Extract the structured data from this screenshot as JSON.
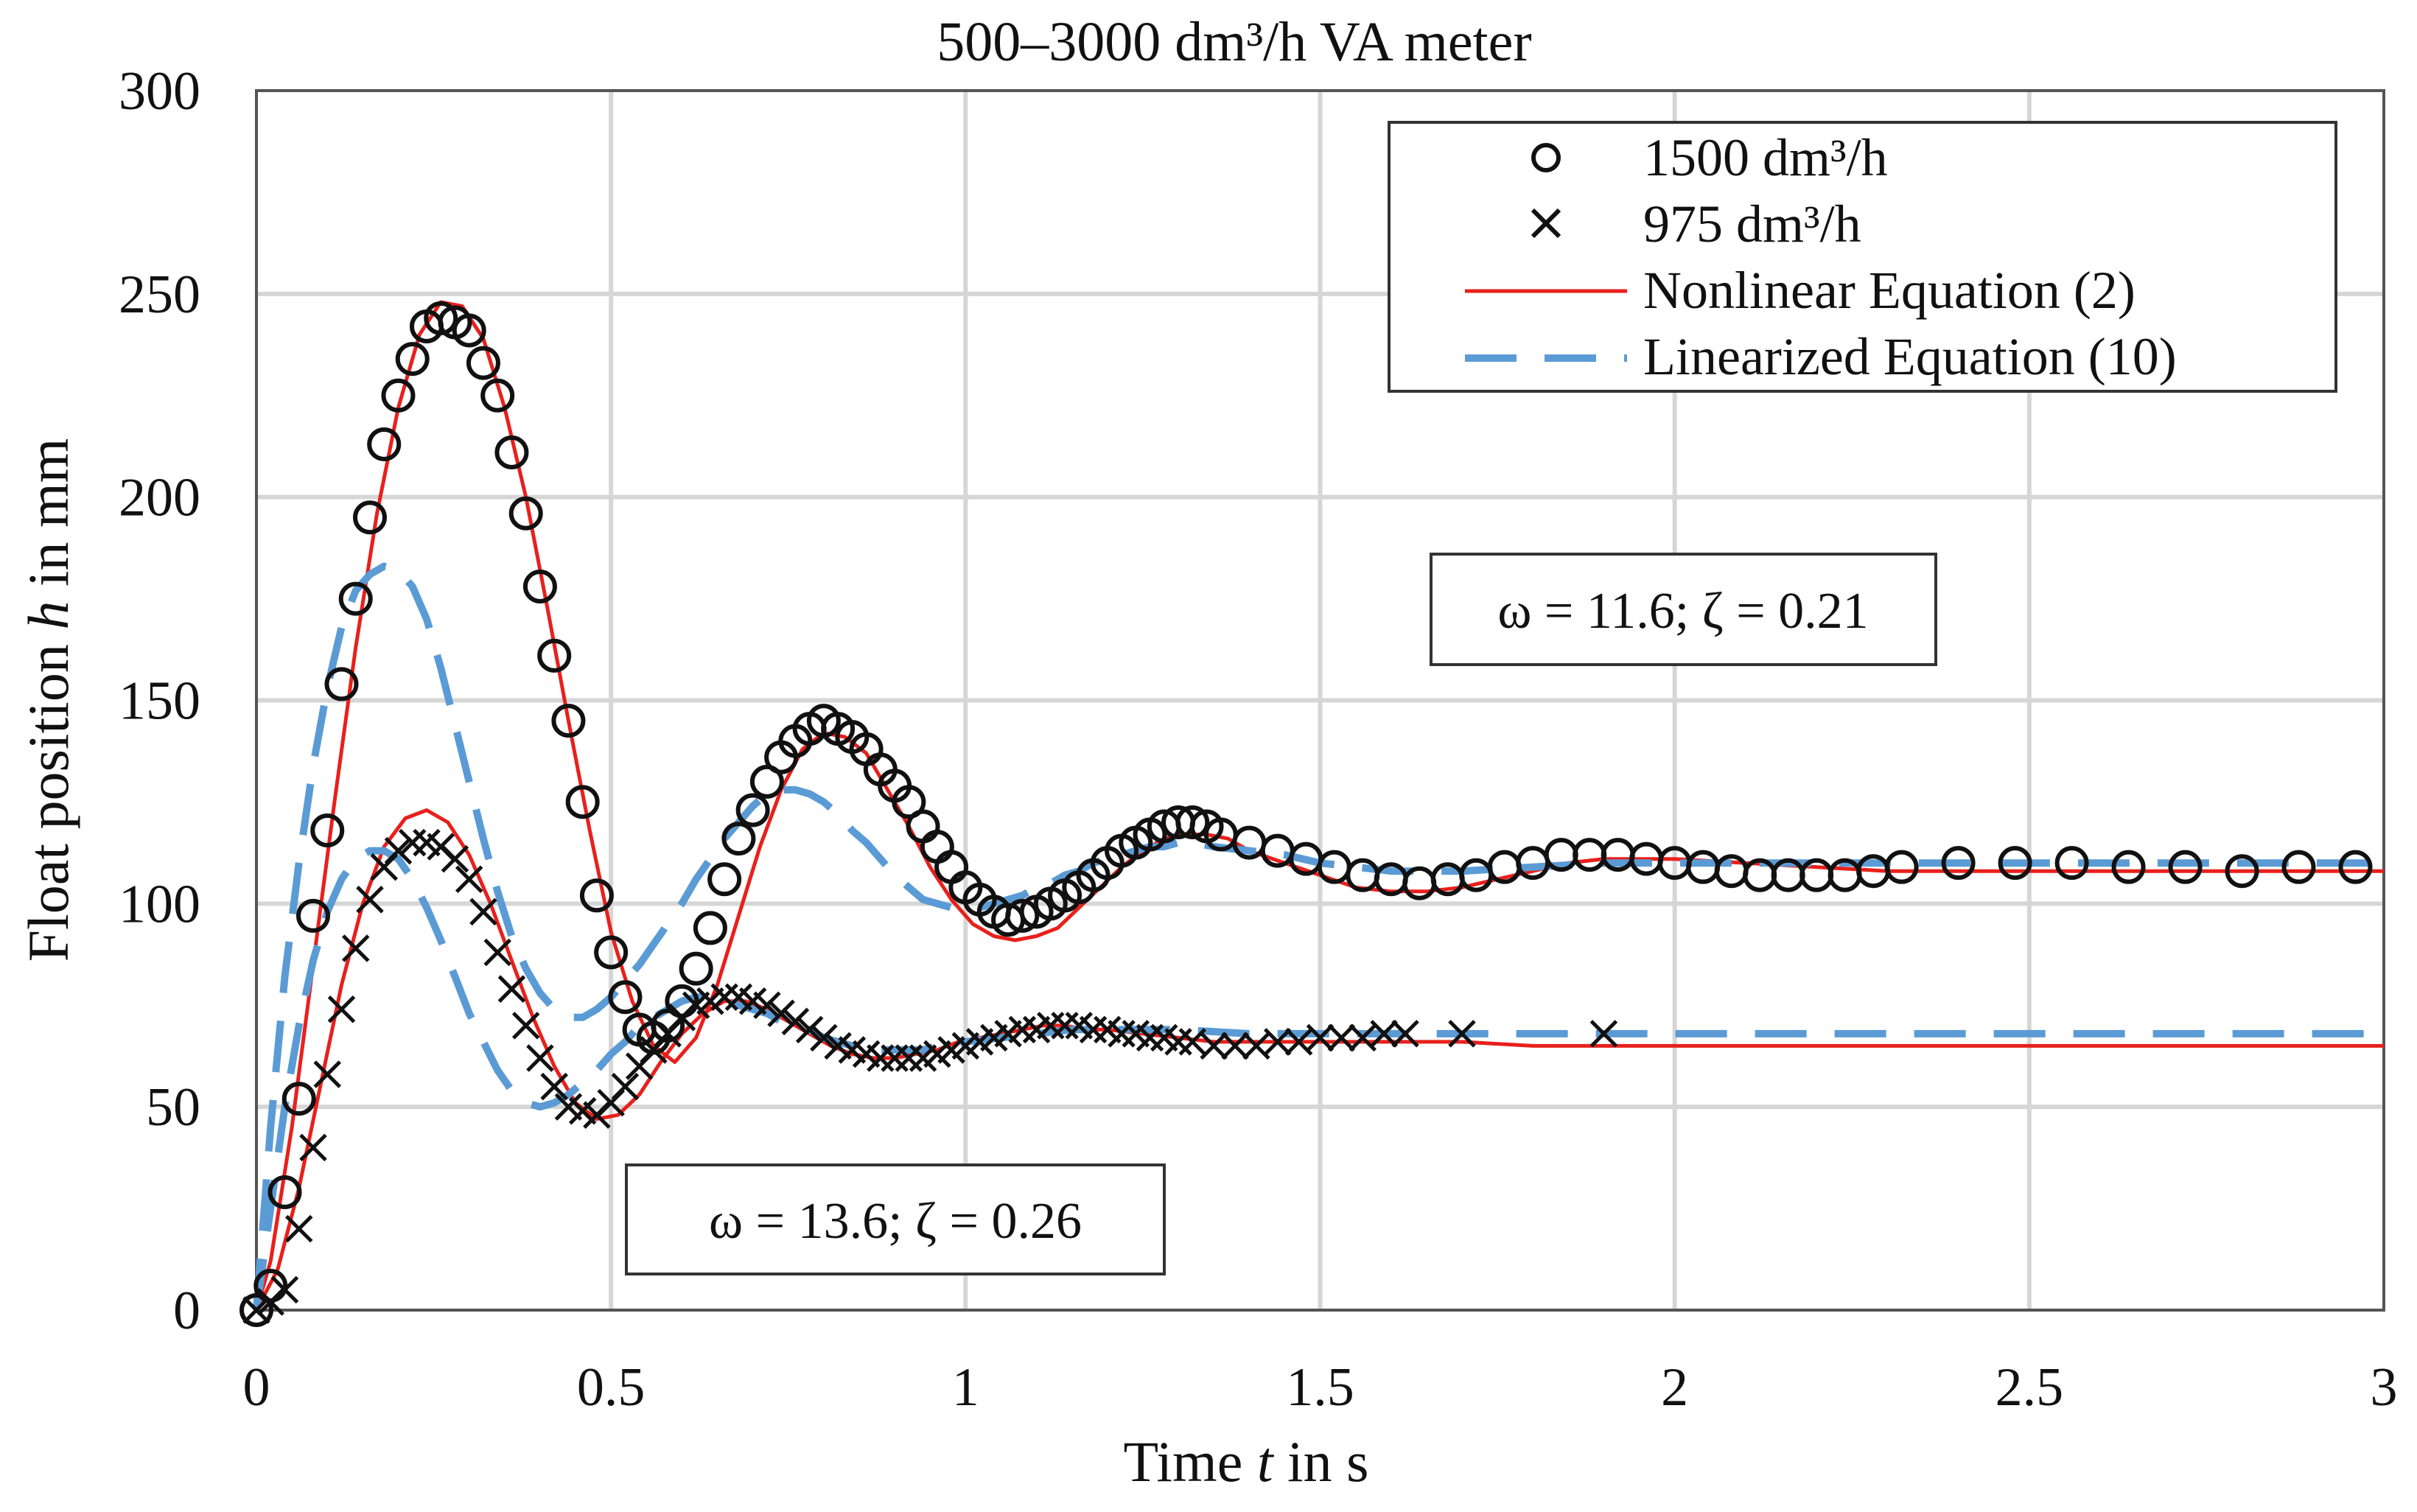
{
  "chart_data": {
    "type": "line",
    "title": "500–3000 dm³/h VA meter",
    "xlabel": "Time t in s",
    "xlabel_parts": [
      "Time ",
      "t",
      " in s"
    ],
    "ylabel": "Float position h in mm",
    "ylabel_parts": [
      "Float position ",
      "h",
      " in mm"
    ],
    "xlim": [
      0,
      3
    ],
    "ylim": [
      0,
      300
    ],
    "x_ticks": [
      0,
      0.5,
      1,
      1.5,
      2,
      2.5,
      3
    ],
    "x_tick_labels": [
      "0",
      "0.5",
      "1",
      "1.5",
      "2",
      "2.5",
      "3"
    ],
    "y_ticks": [
      0,
      50,
      100,
      150,
      200,
      250,
      300
    ],
    "y_tick_labels": [
      "0",
      "50",
      "100",
      "150",
      "200",
      "250",
      "300"
    ],
    "grid": true,
    "legend_position": "top-right",
    "legend": [
      {
        "label": "1500 dm³/h",
        "marker": "circle"
      },
      {
        "label": "975 dm³/h",
        "marker": "cross"
      },
      {
        "label": "Nonlinear Equation (2)",
        "line": "solid",
        "color": "#e8201c"
      },
      {
        "label": "Linearized Equation (10)",
        "line": "dashed",
        "color": "#5b9bd5"
      }
    ],
    "annotations": [
      {
        "text": "ω = 11.6; ζ = 0.21",
        "anchor": "upper-right",
        "x": 2.0,
        "y": 175
      },
      {
        "text": "ω = 13.6; ζ = 0.26",
        "anchor": "lower-left",
        "x": 0.75,
        "y": 20
      }
    ],
    "series": [
      {
        "name": "1500 dm³/h",
        "kind": "markers",
        "marker": "circle",
        "x": [
          0.0,
          0.02,
          0.04,
          0.06,
          0.08,
          0.1,
          0.12,
          0.14,
          0.16,
          0.18,
          0.2,
          0.22,
          0.24,
          0.26,
          0.28,
          0.3,
          0.32,
          0.34,
          0.36,
          0.38,
          0.4,
          0.42,
          0.44,
          0.46,
          0.48,
          0.5,
          0.52,
          0.54,
          0.56,
          0.58,
          0.6,
          0.62,
          0.64,
          0.66,
          0.68,
          0.7,
          0.72,
          0.74,
          0.76,
          0.78,
          0.8,
          0.82,
          0.84,
          0.86,
          0.88,
          0.9,
          0.92,
          0.94,
          0.96,
          0.98,
          1.0,
          1.02,
          1.04,
          1.06,
          1.08,
          1.1,
          1.12,
          1.14,
          1.16,
          1.18,
          1.2,
          1.22,
          1.24,
          1.26,
          1.28,
          1.3,
          1.32,
          1.34,
          1.36,
          1.4,
          1.44,
          1.48,
          1.52,
          1.56,
          1.6,
          1.64,
          1.68,
          1.72,
          1.76,
          1.8,
          1.84,
          1.88,
          1.92,
          1.96,
          2.0,
          2.04,
          2.08,
          2.12,
          2.16,
          2.2,
          2.24,
          2.28,
          2.32,
          2.4,
          2.48,
          2.56,
          2.64,
          2.72,
          2.8,
          2.88,
          2.96
        ],
        "y": [
          0,
          6,
          29,
          52,
          97,
          118,
          154,
          175,
          195,
          213,
          225,
          234,
          242,
          244,
          243,
          241,
          233,
          225,
          211,
          196,
          178,
          161,
          145,
          125,
          102,
          88,
          77,
          69,
          67,
          70,
          76,
          84,
          94,
          106,
          116,
          123,
          130,
          136,
          140,
          143,
          145,
          143,
          141,
          138,
          133,
          129,
          125,
          119,
          114,
          109,
          104,
          101,
          98,
          96,
          97,
          98,
          100,
          102,
          104,
          107,
          110,
          113,
          115,
          117,
          119,
          120,
          120,
          119,
          117,
          115,
          113,
          111,
          109,
          107,
          106,
          105,
          106,
          107,
          109,
          110,
          112,
          112,
          112,
          111,
          110,
          109,
          108,
          107,
          107,
          107,
          107,
          108,
          109,
          110,
          110,
          110,
          109,
          109,
          108,
          109,
          109
        ]
      },
      {
        "name": "975 dm³/h",
        "kind": "markers",
        "marker": "cross",
        "x": [
          0.0,
          0.02,
          0.04,
          0.06,
          0.08,
          0.1,
          0.12,
          0.14,
          0.16,
          0.18,
          0.2,
          0.22,
          0.24,
          0.26,
          0.28,
          0.3,
          0.32,
          0.34,
          0.36,
          0.38,
          0.4,
          0.42,
          0.44,
          0.46,
          0.48,
          0.5,
          0.52,
          0.54,
          0.56,
          0.58,
          0.6,
          0.62,
          0.64,
          0.66,
          0.68,
          0.7,
          0.72,
          0.74,
          0.76,
          0.78,
          0.8,
          0.82,
          0.84,
          0.86,
          0.88,
          0.9,
          0.92,
          0.94,
          0.96,
          0.98,
          1.0,
          1.02,
          1.04,
          1.06,
          1.08,
          1.1,
          1.12,
          1.14,
          1.16,
          1.18,
          1.2,
          1.22,
          1.24,
          1.26,
          1.28,
          1.3,
          1.32,
          1.35,
          1.38,
          1.41,
          1.44,
          1.47,
          1.5,
          1.53,
          1.56,
          1.59,
          1.62,
          1.7,
          1.9
        ],
        "y": [
          0,
          2,
          5,
          20,
          40,
          58,
          74,
          89,
          101,
          109,
          113,
          115,
          115,
          114,
          111,
          106,
          98,
          88,
          79,
          70,
          62,
          55,
          50,
          49,
          48,
          51,
          55,
          60,
          64,
          68,
          72,
          75,
          76,
          77,
          77,
          76,
          75,
          73,
          71,
          69,
          67,
          65,
          64,
          63,
          62,
          62,
          62,
          62,
          63,
          64,
          65,
          66,
          67,
          68,
          69,
          69,
          70,
          70,
          70,
          69,
          69,
          68,
          68,
          67,
          67,
          66,
          66,
          65,
          65,
          65,
          66,
          66,
          67,
          67,
          67,
          68,
          68,
          68,
          68
        ]
      },
      {
        "name": "Nonlinear Equation (2) – 1500 dm³/h",
        "kind": "line",
        "style": "solid",
        "color": "#e8201c",
        "x": [
          0.0,
          0.02,
          0.05,
          0.08,
          0.11,
          0.14,
          0.17,
          0.2,
          0.23,
          0.26,
          0.29,
          0.32,
          0.35,
          0.38,
          0.41,
          0.44,
          0.47,
          0.5,
          0.53,
          0.56,
          0.59,
          0.62,
          0.65,
          0.68,
          0.71,
          0.74,
          0.77,
          0.8,
          0.83,
          0.86,
          0.89,
          0.92,
          0.95,
          0.98,
          1.01,
          1.04,
          1.07,
          1.1,
          1.13,
          1.16,
          1.19,
          1.22,
          1.25,
          1.28,
          1.31,
          1.34,
          1.37,
          1.4,
          1.45,
          1.5,
          1.55,
          1.6,
          1.65,
          1.7,
          1.75,
          1.8,
          1.85,
          1.9,
          1.95,
          2.0,
          2.1,
          2.2,
          2.3,
          2.5,
          2.7,
          3.0
        ],
        "y": [
          0,
          12,
          45,
          85,
          125,
          163,
          196,
          222,
          240,
          248,
          247,
          239,
          222,
          200,
          173,
          145,
          118,
          93,
          76,
          65,
          61,
          67,
          80,
          97,
          114,
          128,
          138,
          142,
          141,
          137,
          128,
          119,
          109,
          101,
          95,
          92,
          91,
          92,
          94,
          99,
          104,
          109,
          113,
          116,
          117,
          117,
          116,
          113,
          110,
          107,
          104,
          103,
          103,
          104,
          106,
          108,
          110,
          111,
          111,
          111,
          110,
          109,
          108,
          108,
          108,
          108
        ]
      },
      {
        "name": "Nonlinear Equation (2) – 975 dm³/h",
        "kind": "line",
        "style": "solid",
        "color": "#e8201c",
        "x": [
          0.0,
          0.03,
          0.06,
          0.09,
          0.12,
          0.15,
          0.18,
          0.21,
          0.24,
          0.27,
          0.3,
          0.33,
          0.36,
          0.39,
          0.42,
          0.45,
          0.48,
          0.51,
          0.54,
          0.57,
          0.6,
          0.63,
          0.66,
          0.69,
          0.72,
          0.75,
          0.78,
          0.81,
          0.84,
          0.87,
          0.9,
          0.93,
          0.96,
          0.99,
          1.02,
          1.05,
          1.08,
          1.11,
          1.14,
          1.17,
          1.2,
          1.25,
          1.3,
          1.35,
          1.4,
          1.5,
          1.6,
          1.7,
          1.8,
          2.0,
          2.3,
          2.6,
          3.0
        ],
        "y": [
          0,
          10,
          30,
          55,
          80,
          100,
          114,
          121,
          123,
          120,
          112,
          100,
          86,
          72,
          60,
          51,
          47,
          48,
          53,
          61,
          68,
          73,
          76,
          76,
          74,
          71,
          68,
          65,
          63,
          62,
          62,
          63,
          64,
          66,
          67,
          68,
          69,
          70,
          70,
          69,
          69,
          68,
          67,
          66,
          66,
          66,
          66,
          66,
          65,
          65,
          65,
          65,
          65
        ]
      },
      {
        "name": "Linearized Equation (10) – 1500 dm³/h",
        "kind": "line",
        "style": "dashed",
        "color": "#5b9bd5",
        "x": [
          0.0,
          0.02,
          0.04,
          0.06,
          0.08,
          0.1,
          0.12,
          0.14,
          0.16,
          0.18,
          0.2,
          0.22,
          0.24,
          0.26,
          0.28,
          0.3,
          0.32,
          0.34,
          0.36,
          0.38,
          0.4,
          0.42,
          0.44,
          0.46,
          0.48,
          0.5,
          0.52,
          0.54,
          0.56,
          0.58,
          0.6,
          0.62,
          0.64,
          0.66,
          0.68,
          0.7,
          0.72,
          0.74,
          0.76,
          0.78,
          0.8,
          0.82,
          0.84,
          0.86,
          0.88,
          0.9,
          0.92,
          0.94,
          0.96,
          0.98,
          1.0,
          1.02,
          1.04,
          1.06,
          1.08,
          1.1,
          1.12,
          1.14,
          1.16,
          1.18,
          1.2,
          1.22,
          1.24,
          1.26,
          1.28,
          1.3,
          1.32,
          1.35,
          1.4,
          1.45,
          1.5,
          1.6,
          1.7,
          1.8,
          1.9,
          2.0,
          2.2,
          2.5,
          3.0
        ],
        "y": [
          0,
          45,
          82,
          110,
          134,
          153,
          168,
          177,
          181,
          183,
          182,
          178,
          170,
          158,
          144,
          130,
          116,
          103,
          92,
          84,
          78,
          74,
          72,
          72,
          74,
          77,
          81,
          85,
          90,
          95,
          100,
          106,
          111,
          116,
          120,
          124,
          127,
          128,
          128,
          127,
          125,
          122,
          118,
          115,
          111,
          107,
          104,
          101,
          100,
          99,
          99,
          99,
          100,
          101,
          102,
          104,
          105,
          107,
          108,
          110,
          111,
          112,
          113,
          114,
          114,
          115,
          115,
          114,
          113,
          112,
          110,
          108,
          108,
          109,
          110,
          110,
          110,
          110,
          110
        ]
      },
      {
        "name": "Linearized Equation (10) – 975 dm³/h",
        "kind": "line",
        "style": "dashed",
        "color": "#5b9bd5",
        "x": [
          0.0,
          0.02,
          0.04,
          0.06,
          0.08,
          0.1,
          0.12,
          0.14,
          0.16,
          0.18,
          0.2,
          0.22,
          0.24,
          0.26,
          0.28,
          0.3,
          0.32,
          0.34,
          0.36,
          0.38,
          0.4,
          0.42,
          0.44,
          0.46,
          0.48,
          0.5,
          0.52,
          0.54,
          0.56,
          0.58,
          0.6,
          0.62,
          0.64,
          0.66,
          0.68,
          0.7,
          0.72,
          0.74,
          0.76,
          0.78,
          0.8,
          0.82,
          0.84,
          0.86,
          0.88,
          0.9,
          0.92,
          0.94,
          0.96,
          0.98,
          1.0,
          1.05,
          1.1,
          1.15,
          1.2,
          1.25,
          1.3,
          1.4,
          1.5,
          1.7,
          2.0,
          2.5,
          3.0
        ],
        "y": [
          0,
          25,
          50,
          70,
          86,
          98,
          106,
          111,
          113,
          113,
          111,
          106,
          99,
          91,
          82,
          73,
          66,
          59,
          54,
          51,
          50,
          51,
          53,
          56,
          59,
          63,
          66,
          70,
          72,
          74,
          76,
          77,
          77,
          76,
          75,
          74,
          73,
          71,
          70,
          69,
          67,
          66,
          65,
          64,
          64,
          64,
          64,
          64,
          65,
          65,
          66,
          67,
          68,
          69,
          69,
          69,
          69,
          68,
          68,
          68,
          68,
          68,
          68
        ]
      }
    ]
  }
}
